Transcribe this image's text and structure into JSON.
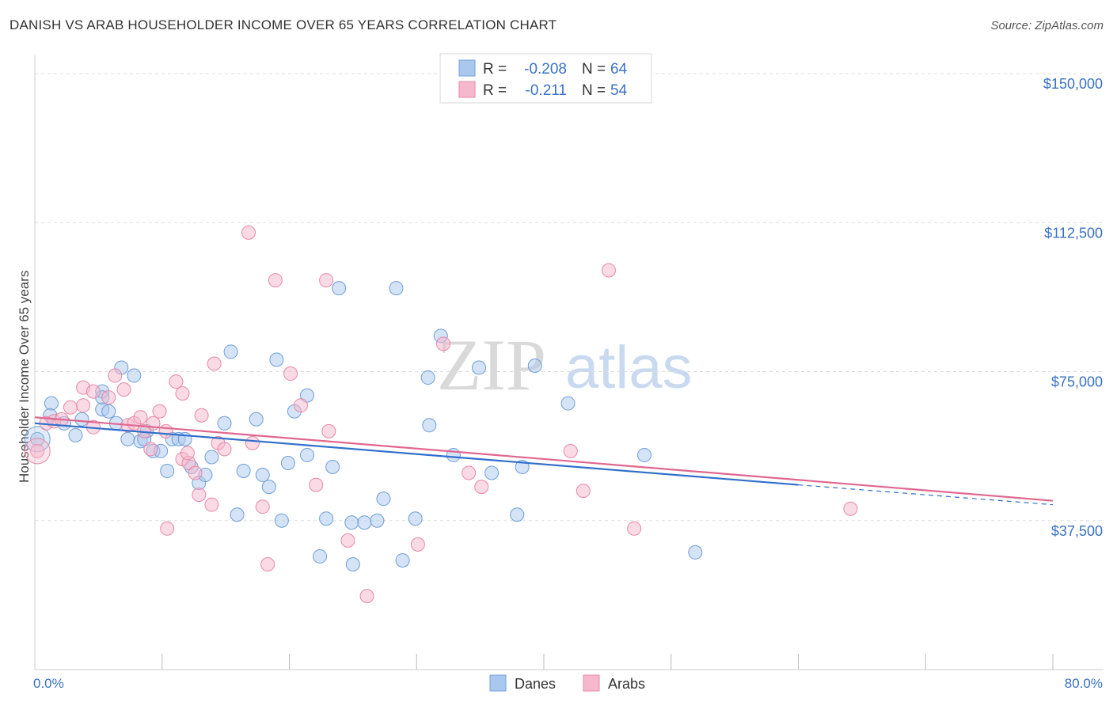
{
  "title": "DANISH VS ARAB HOUSEHOLDER INCOME OVER 65 YEARS CORRELATION CHART",
  "source": "Source: ZipAtlas.com",
  "colors": {
    "danes_fill": "#aac8ee",
    "danes_stroke": "#6f9fd8",
    "danes_line": "#2f6fcc",
    "arabs_fill": "#f6b8cc",
    "arabs_stroke": "#e887a7",
    "arabs_line": "#e0678f",
    "tick_text": "#3a72c4",
    "grid": "#dddddd"
  },
  "legend": {
    "rows": [
      {
        "r_label": "R =",
        "r_value": "-0.208",
        "n_label": "N =",
        "n_value": "64"
      },
      {
        "r_label": "R =",
        "r_value": "-0.211",
        "n_label": "N =",
        "n_value": "54"
      }
    ]
  },
  "watermark": {
    "zip": "ZIP",
    "atlas": "atlas"
  },
  "chart_data": {
    "type": "scatter",
    "title": "DANISH VS ARAB HOUSEHOLDER INCOME OVER 65 YEARS CORRELATION CHART",
    "xlabel": "",
    "ylabel": "Householder Income Over 65 years",
    "xlim": [
      0,
      80
    ],
    "ylim": [
      0,
      153000
    ],
    "y_ticks": [
      37500,
      75000,
      112500,
      150000
    ],
    "y_tick_labels": [
      "$37,500",
      "$75,000",
      "$112,500",
      "$150,000"
    ],
    "x_tick_labels": [
      "0.0%",
      "80.0%"
    ],
    "grid": true,
    "legend_position": "top-center",
    "series": [
      {
        "name": "Danes",
        "R": -0.208,
        "N": 64,
        "trend": {
          "x0": 0,
          "y0": 62000,
          "x1": 60,
          "y1": 46500,
          "dash_to_x": 80,
          "dash_to_y": 41500
        },
        "points": [
          [
            0.2,
            58000
          ],
          [
            1.3,
            67000
          ],
          [
            1.2,
            64000
          ],
          [
            2.3,
            62000
          ],
          [
            3.2,
            59000
          ],
          [
            3.7,
            63000
          ],
          [
            5.3,
            65500
          ],
          [
            5.3,
            70000
          ],
          [
            5.3,
            68500
          ],
          [
            5.8,
            65000
          ],
          [
            6.4,
            62000
          ],
          [
            6.8,
            76000
          ],
          [
            7.3,
            58000
          ],
          [
            7.8,
            74000
          ],
          [
            8.3,
            57500
          ],
          [
            8.8,
            60000
          ],
          [
            9.3,
            55000
          ],
          [
            9.9,
            55000
          ],
          [
            10.4,
            50000
          ],
          [
            10.8,
            58000
          ],
          [
            11.3,
            58000
          ],
          [
            11.8,
            58000
          ],
          [
            12.3,
            51000
          ],
          [
            12.9,
            47000
          ],
          [
            13.4,
            49000
          ],
          [
            13.9,
            53500
          ],
          [
            14.9,
            62000
          ],
          [
            15.4,
            80000
          ],
          [
            15.9,
            39000
          ],
          [
            16.4,
            50000
          ],
          [
            17.4,
            63000
          ],
          [
            17.9,
            49000
          ],
          [
            18.4,
            46000
          ],
          [
            19.0,
            78000
          ],
          [
            19.4,
            37500
          ],
          [
            19.9,
            52000
          ],
          [
            20.4,
            65000
          ],
          [
            21.4,
            69000
          ],
          [
            21.4,
            54000
          ],
          [
            22.4,
            28500
          ],
          [
            22.9,
            38000
          ],
          [
            23.4,
            51000
          ],
          [
            23.9,
            96000
          ],
          [
            24.9,
            37000
          ],
          [
            25.9,
            37000
          ],
          [
            25.0,
            26500
          ],
          [
            26.9,
            37500
          ],
          [
            27.4,
            43000
          ],
          [
            28.4,
            96000
          ],
          [
            28.9,
            27500
          ],
          [
            29.9,
            38000
          ],
          [
            30.9,
            73500
          ],
          [
            31.0,
            61500
          ],
          [
            31.9,
            84000
          ],
          [
            32.9,
            54000
          ],
          [
            34.9,
            76000
          ],
          [
            35.9,
            49500
          ],
          [
            37.9,
            39000
          ],
          [
            38.3,
            51000
          ],
          [
            39.3,
            76500
          ],
          [
            41.9,
            67000
          ],
          [
            47.9,
            54000
          ],
          [
            51.9,
            29500
          ],
          [
            8.6,
            58000
          ]
        ]
      },
      {
        "name": "Arabs",
        "R": -0.211,
        "N": 54,
        "trend": {
          "x0": 0,
          "y0": 63500,
          "x1": 80,
          "y1": 42500
        },
        "points": [
          [
            0.2,
            55000
          ],
          [
            0.9,
            62000
          ],
          [
            1.5,
            62500
          ],
          [
            2.1,
            63000
          ],
          [
            2.8,
            66000
          ],
          [
            3.8,
            71000
          ],
          [
            3.8,
            66500
          ],
          [
            4.6,
            70000
          ],
          [
            4.6,
            61000
          ],
          [
            5.8,
            68500
          ],
          [
            6.3,
            74000
          ],
          [
            7.0,
            70500
          ],
          [
            7.3,
            61500
          ],
          [
            7.8,
            62000
          ],
          [
            8.3,
            63500
          ],
          [
            8.6,
            60000
          ],
          [
            9.1,
            55500
          ],
          [
            9.3,
            62000
          ],
          [
            9.8,
            65000
          ],
          [
            10.3,
            60000
          ],
          [
            10.4,
            35500
          ],
          [
            11.1,
            72500
          ],
          [
            11.6,
            69500
          ],
          [
            11.6,
            53000
          ],
          [
            12.1,
            52000
          ],
          [
            12.6,
            49500
          ],
          [
            12.9,
            44000
          ],
          [
            13.1,
            64000
          ],
          [
            13.9,
            41500
          ],
          [
            14.1,
            77000
          ],
          [
            14.4,
            57000
          ],
          [
            14.9,
            55500
          ],
          [
            16.8,
            110000
          ],
          [
            17.1,
            57000
          ],
          [
            17.9,
            41000
          ],
          [
            18.3,
            26500
          ],
          [
            18.9,
            98000
          ],
          [
            20.1,
            74500
          ],
          [
            20.9,
            66500
          ],
          [
            22.1,
            46500
          ],
          [
            22.9,
            98000
          ],
          [
            23.1,
            60000
          ],
          [
            24.6,
            32500
          ],
          [
            26.1,
            18500
          ],
          [
            30.1,
            31500
          ],
          [
            32.1,
            82000
          ],
          [
            34.1,
            49500
          ],
          [
            35.1,
            46000
          ],
          [
            42.1,
            55000
          ],
          [
            43.1,
            45000
          ],
          [
            45.1,
            100500
          ],
          [
            47.1,
            35500
          ],
          [
            64.1,
            40500
          ],
          [
            12.0,
            54500
          ]
        ]
      }
    ]
  },
  "bottom_legend": {
    "items": [
      "Danes",
      "Arabs"
    ]
  }
}
